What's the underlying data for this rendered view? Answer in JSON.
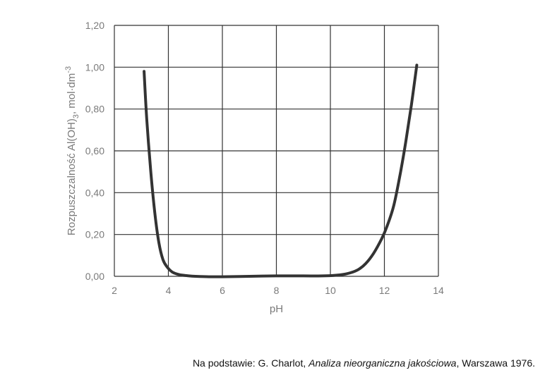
{
  "chart_data": {
    "type": "line",
    "xlabel": "pH",
    "ylabel": "Rozpuszczalność Al(OH)3, mol·dm-3",
    "ylabel_parts": {
      "main": "Rozpuszczalność Al(OH)",
      "sub": "3",
      "unit": ", mol·dm",
      "sup": "-3"
    },
    "xlim": [
      2,
      14
    ],
    "ylim": [
      0,
      1.2
    ],
    "x_ticks": [
      "2",
      "4",
      "6",
      "8",
      "10",
      "12",
      "14"
    ],
    "y_ticks": [
      "0,00",
      "0,20",
      "0,40",
      "0,60",
      "0,80",
      "1,00",
      "1,20"
    ],
    "grid": true,
    "series": [
      {
        "x": [
          3.1,
          3.2,
          3.35,
          3.5,
          3.65,
          3.8,
          3.95,
          4.15,
          4.4,
          4.7,
          5.0,
          5.5,
          6.0,
          7.0,
          8.0,
          9.0,
          9.7,
          10.2,
          10.6,
          11.0,
          11.3,
          11.6,
          11.9,
          12.1,
          12.35,
          12.6,
          12.8,
          13.0,
          13.2
        ],
        "y": [
          0.98,
          0.75,
          0.5,
          0.3,
          0.16,
          0.08,
          0.045,
          0.02,
          0.008,
          0.003,
          0.0,
          -0.002,
          -0.002,
          0.0,
          0.002,
          0.002,
          0.002,
          0.005,
          0.012,
          0.03,
          0.06,
          0.11,
          0.18,
          0.24,
          0.34,
          0.5,
          0.65,
          0.82,
          1.01
        ]
      }
    ],
    "line_color": "#333333"
  },
  "source": {
    "prefix": "Na podstawie: G. Charlot, ",
    "title": "Analiza nieorganiczna jakościowa",
    "suffix": ", Warszawa 1976."
  }
}
